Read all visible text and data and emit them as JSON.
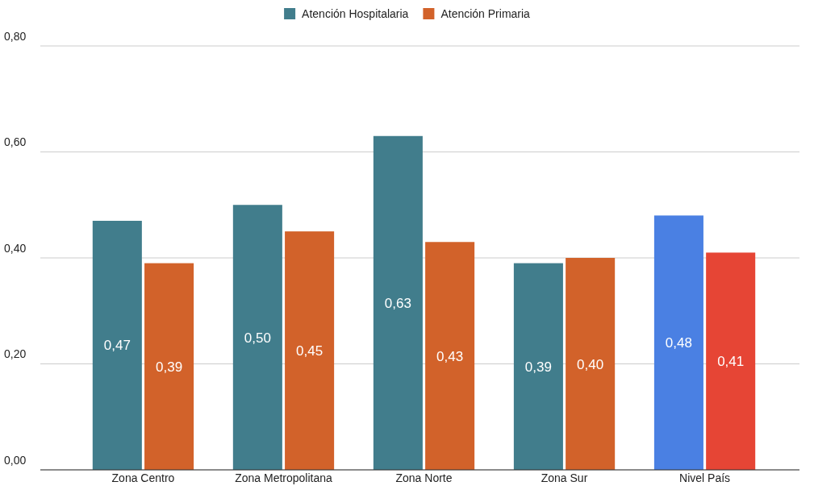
{
  "chart_data": {
    "type": "bar",
    "categories": [
      "Zona Centro",
      "Zona Metropolitana",
      "Zona Norte",
      "Zona Sur",
      "Nivel País"
    ],
    "series": [
      {
        "name": "Atención Hospitalaria",
        "color": "#417d8c",
        "colors": [
          "#417d8c",
          "#417d8c",
          "#417d8c",
          "#417d8c",
          "#4a80e3"
        ],
        "values": [
          0.47,
          0.5,
          0.63,
          0.39,
          0.48
        ],
        "value_labels": [
          "0,47",
          "0,50",
          "0,63",
          "0,39",
          "0,48"
        ]
      },
      {
        "name": "Atención Primaria",
        "color": "#d2622a",
        "colors": [
          "#d2622a",
          "#d2622a",
          "#d2622a",
          "#d2622a",
          "#e64535"
        ],
        "values": [
          0.39,
          0.45,
          0.43,
          0.4,
          0.41
        ],
        "value_labels": [
          "0,39",
          "0,45",
          "0,43",
          "0,40",
          "0,41"
        ]
      }
    ],
    "ylim": [
      0,
      0.8
    ],
    "yticks": [
      {
        "value": 0,
        "label": "0,00"
      },
      {
        "value": 0.2,
        "label": "0,20"
      },
      {
        "value": 0.4,
        "label": "0,40"
      },
      {
        "value": 0.6,
        "label": "0,60"
      },
      {
        "value": 0.8,
        "label": "0,80"
      }
    ],
    "grid": "y",
    "legend": "top"
  }
}
